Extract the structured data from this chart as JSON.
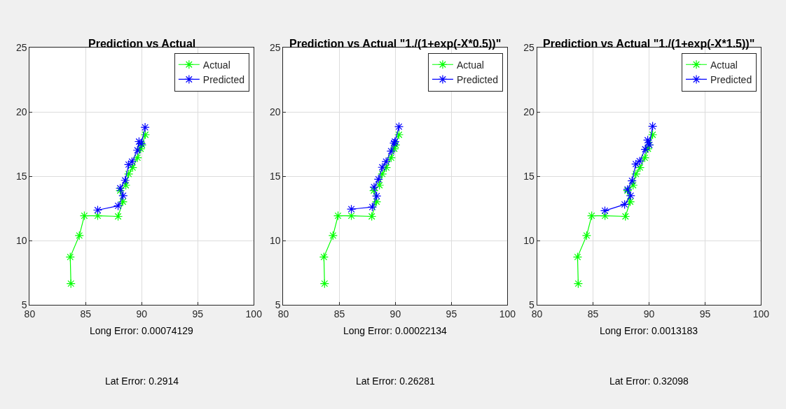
{
  "chart_data": [
    {
      "type": "line",
      "title": "Prediction vs Actual",
      "xlim": [
        80,
        100
      ],
      "ylim": [
        5,
        25
      ],
      "xticks": [
        80,
        85,
        90,
        95,
        100
      ],
      "yticks": [
        5,
        10,
        15,
        20,
        25
      ],
      "grid": true,
      "legend": "top right",
      "marker": "cross",
      "line_style": "solid",
      "annotations": [
        "Long Error: 0.00074129",
        "Lat Error: 0.2914"
      ],
      "series": [
        {
          "name": "Actual",
          "color": "#00ff00",
          "x": [
            83.68,
            83.62,
            84.43,
            84.88,
            86.07,
            87.89,
            88.32,
            88.08,
            88.58,
            88.83,
            89.19,
            89.62,
            89.9,
            90.02,
            90.32
          ],
          "values": [
            6.65,
            8.72,
            10.39,
            11.93,
            11.93,
            11.88,
            13.02,
            13.89,
            14.3,
            15.18,
            15.68,
            16.44,
            17.14,
            17.44,
            18.23
          ]
        },
        {
          "name": "Predicted",
          "color": "#0000ff",
          "x": [
            86.07,
            87.89,
            88.34,
            88.08,
            88.52,
            88.83,
            89.13,
            89.62,
            89.76,
            89.96,
            90.3
          ],
          "values": [
            12.37,
            12.7,
            13.49,
            14.07,
            14.68,
            15.91,
            16.14,
            17.02,
            17.7,
            17.53,
            18.81
          ]
        }
      ]
    },
    {
      "type": "line",
      "title": "Prediction vs Actual \"1./(1+exp(-X*0.5))\"",
      "xlim": [
        80,
        100
      ],
      "ylim": [
        5,
        25
      ],
      "xticks": [
        80,
        85,
        90,
        95,
        100
      ],
      "yticks": [
        5,
        10,
        15,
        20,
        25
      ],
      "grid": true,
      "legend": "top right",
      "marker": "cross",
      "line_style": "solid",
      "annotations": [
        "Long Error: 0.00022134",
        "Lat Error: 0.26281"
      ],
      "series": [
        {
          "name": "Actual",
          "color": "#00ff00",
          "x": [
            83.68,
            83.62,
            84.43,
            84.88,
            86.07,
            87.89,
            88.32,
            88.08,
            88.58,
            88.83,
            89.19,
            89.62,
            89.9,
            90.02,
            90.32
          ],
          "values": [
            6.65,
            8.72,
            10.39,
            11.93,
            11.93,
            11.88,
            13.02,
            13.89,
            14.3,
            15.18,
            15.68,
            16.44,
            17.14,
            17.44,
            18.23
          ]
        },
        {
          "name": "Predicted",
          "color": "#0000ff",
          "x": [
            86.07,
            87.94,
            88.33,
            88.1,
            88.49,
            88.83,
            89.17,
            89.62,
            89.88,
            89.96,
            90.32
          ],
          "values": [
            12.44,
            12.61,
            13.46,
            14.16,
            14.77,
            15.7,
            16.14,
            16.96,
            17.58,
            17.7,
            18.86
          ]
        }
      ]
    },
    {
      "type": "line",
      "title": "Prediction vs Actual \"1./(1+exp(-X*1.5))\"",
      "xlim": [
        80,
        100
      ],
      "ylim": [
        5,
        25
      ],
      "xticks": [
        80,
        85,
        90,
        95,
        100
      ],
      "yticks": [
        5,
        10,
        15,
        20,
        25
      ],
      "grid": true,
      "legend": "top right",
      "marker": "cross",
      "line_style": "solid",
      "annotations": [
        "Long Error: 0.0013183",
        "Lat Error: 0.32098"
      ],
      "series": [
        {
          "name": "Actual",
          "color": "#00ff00",
          "x": [
            83.68,
            83.62,
            84.43,
            84.88,
            86.07,
            87.89,
            88.32,
            88.08,
            88.58,
            88.83,
            89.19,
            89.62,
            89.9,
            90.02,
            90.32
          ],
          "values": [
            6.65,
            8.72,
            10.39,
            11.93,
            11.93,
            11.88,
            13.02,
            13.89,
            14.3,
            15.18,
            15.68,
            16.44,
            17.14,
            17.44,
            18.23
          ]
        },
        {
          "name": "Predicted",
          "color": "#0000ff",
          "x": [
            86.06,
            87.82,
            88.36,
            88.08,
            88.48,
            88.82,
            89.16,
            89.66,
            89.88,
            90.02,
            90.32
          ],
          "values": [
            12.32,
            12.81,
            13.49,
            13.98,
            14.65,
            15.95,
            16.18,
            17.1,
            17.81,
            17.44,
            18.89
          ]
        }
      ]
    }
  ]
}
